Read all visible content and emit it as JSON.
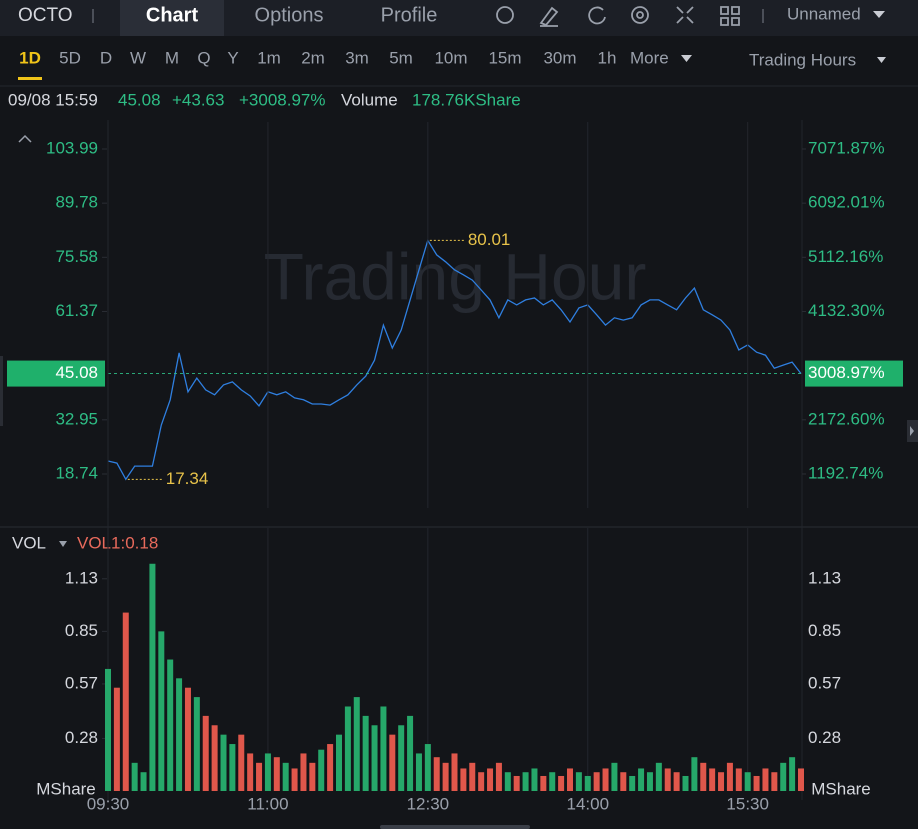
{
  "header": {
    "symbol": "OCTO",
    "tabs": [
      "Chart",
      "Options",
      "Profile"
    ],
    "layout_name": "Unnamed"
  },
  "toolbar": {
    "timeframes": [
      "1D",
      "5D",
      "D",
      "W",
      "M",
      "Q",
      "Y",
      "1m",
      "2m",
      "3m",
      "5m",
      "10m",
      "15m",
      "30m",
      "1h"
    ],
    "more": "More",
    "session": "Trading Hours"
  },
  "info": {
    "time": "09/08 15:59",
    "price": "45.08",
    "change": "+43.63",
    "change_pct": "+3008.97%",
    "volume_label": "Volume",
    "volume": "178.76KShare"
  },
  "chart_data": [
    {
      "type": "line",
      "watermark": "Trading Hour",
      "x": [
        "09:30",
        "09:35",
        "09:40",
        "09:45",
        "09:50",
        "09:55",
        "10:00",
        "10:05",
        "10:10",
        "10:15",
        "10:20",
        "10:25",
        "10:30",
        "10:35",
        "10:40",
        "10:45",
        "10:50",
        "10:55",
        "11:00",
        "11:05",
        "11:10",
        "11:15",
        "11:20",
        "11:25",
        "11:30",
        "11:35",
        "11:40",
        "11:45",
        "11:50",
        "11:55",
        "12:00",
        "12:05",
        "12:10",
        "12:15",
        "12:20",
        "12:25",
        "12:30",
        "12:35",
        "12:40",
        "12:45",
        "12:50",
        "12:55",
        "13:00",
        "13:05",
        "13:10",
        "13:15",
        "13:20",
        "13:25",
        "13:30",
        "13:35",
        "13:40",
        "13:45",
        "13:50",
        "13:55",
        "14:00",
        "14:05",
        "14:10",
        "14:15",
        "14:20",
        "14:25",
        "14:30",
        "14:35",
        "14:40",
        "14:45",
        "14:50",
        "14:55",
        "15:00",
        "15:05",
        "15:10",
        "15:15",
        "15:20",
        "15:25",
        "15:30",
        "15:35",
        "15:40",
        "15:45",
        "15:50",
        "15:55",
        "16:00"
      ],
      "xlim": [
        "09:30",
        "16:00"
      ],
      "series": [
        {
          "color": "#2f7fe0",
          "values": [
            22.15,
            21.6,
            17.34,
            20.8,
            20.8,
            20.8,
            31.6,
            38.2,
            50.5,
            40.3,
            43.9,
            40.8,
            39.5,
            42.1,
            42.9,
            40.8,
            39.2,
            36.6,
            40.3,
            39.5,
            40.3,
            38.7,
            38.2,
            37.1,
            37.1,
            36.8,
            38.2,
            39.5,
            42.1,
            44.4,
            48.6,
            57.8,
            51.8,
            56.5,
            64.4,
            72.3,
            80.01,
            76.2,
            74.4,
            72.3,
            71.0,
            69.6,
            67.0,
            64.4,
            59.7,
            64.4,
            63.1,
            64.4,
            64.9,
            63.1,
            64.4,
            61.8,
            58.6,
            62.3,
            63.1,
            60.5,
            57.8,
            59.7,
            59.1,
            59.7,
            63.1,
            64.4,
            64.4,
            63.1,
            61.8,
            64.9,
            67.5,
            61.8,
            60.5,
            59.1,
            56.5,
            51.3,
            52.6,
            50.7,
            49.9,
            46.5,
            47.3,
            48.1,
            45.08
          ]
        }
      ],
      "ylim": [
        9.82,
        111.07
      ],
      "yticks": [
        103.99,
        89.78,
        75.58,
        61.37,
        32.95,
        18.74
      ],
      "y2lim": [
        577.24,
        7560
      ],
      "y2ticks": [
        {
          "value": 7071.87,
          "label": "7071.87%"
        },
        {
          "value": 6092.01,
          "label": "6092.01%"
        },
        {
          "value": 5112.16,
          "label": "5112.16%"
        },
        {
          "value": 4132.3,
          "label": "4132.30%"
        },
        {
          "value": 2172.6,
          "label": "2172.60%"
        },
        {
          "value": 1192.74,
          "label": "1192.74%"
        }
      ],
      "last": {
        "value": 45.08,
        "pct": {
          "value": 3008.97,
          "label": "3008.97%"
        }
      },
      "annotations": [
        {
          "x": "12:30",
          "value": 80.01
        },
        {
          "x": "09:40",
          "value": 17.34
        }
      ],
      "axis_color": "#2ebd85",
      "annotation_color": "#e8c34a",
      "grid": true
    },
    {
      "type": "bar",
      "title": "VOL",
      "indicator": "VOL1:0.18",
      "unit": "MShare",
      "values": [
        0.65,
        0.55,
        0.95,
        0.15,
        0.1,
        1.21,
        0.85,
        0.7,
        0.6,
        0.55,
        0.5,
        0.4,
        0.35,
        0.3,
        0.25,
        0.3,
        0.2,
        0.15,
        0.2,
        0.18,
        0.15,
        0.12,
        0.2,
        0.15,
        0.22,
        0.25,
        0.3,
        0.45,
        0.5,
        0.4,
        0.35,
        0.45,
        0.3,
        0.35,
        0.4,
        0.2,
        0.25,
        0.18,
        0.15,
        0.2,
        0.12,
        0.15,
        0.1,
        0.12,
        0.15,
        0.1,
        0.08,
        0.1,
        0.12,
        0.08,
        0.1,
        0.08,
        0.12,
        0.1,
        0.08,
        0.1,
        0.12,
        0.15,
        0.1,
        0.08,
        0.12,
        0.1,
        0.15,
        0.12,
        0.1,
        0.08,
        0.18,
        0.15,
        0.12,
        0.1,
        0.15,
        0.12,
        0.1,
        0.08,
        0.12,
        0.1,
        0.15,
        0.18,
        0.12
      ],
      "up_color": "#26a86a",
      "down_color": "#e0574b",
      "ylim": [
        0,
        1.23
      ],
      "yticks": [
        1.13,
        0.85,
        0.57,
        0.28
      ],
      "xlim": [
        "09:30",
        "16:00"
      ],
      "xticks": [
        "09:30",
        "11:00",
        "12:30",
        "14:00",
        "15:30"
      ],
      "grid": true
    }
  ]
}
